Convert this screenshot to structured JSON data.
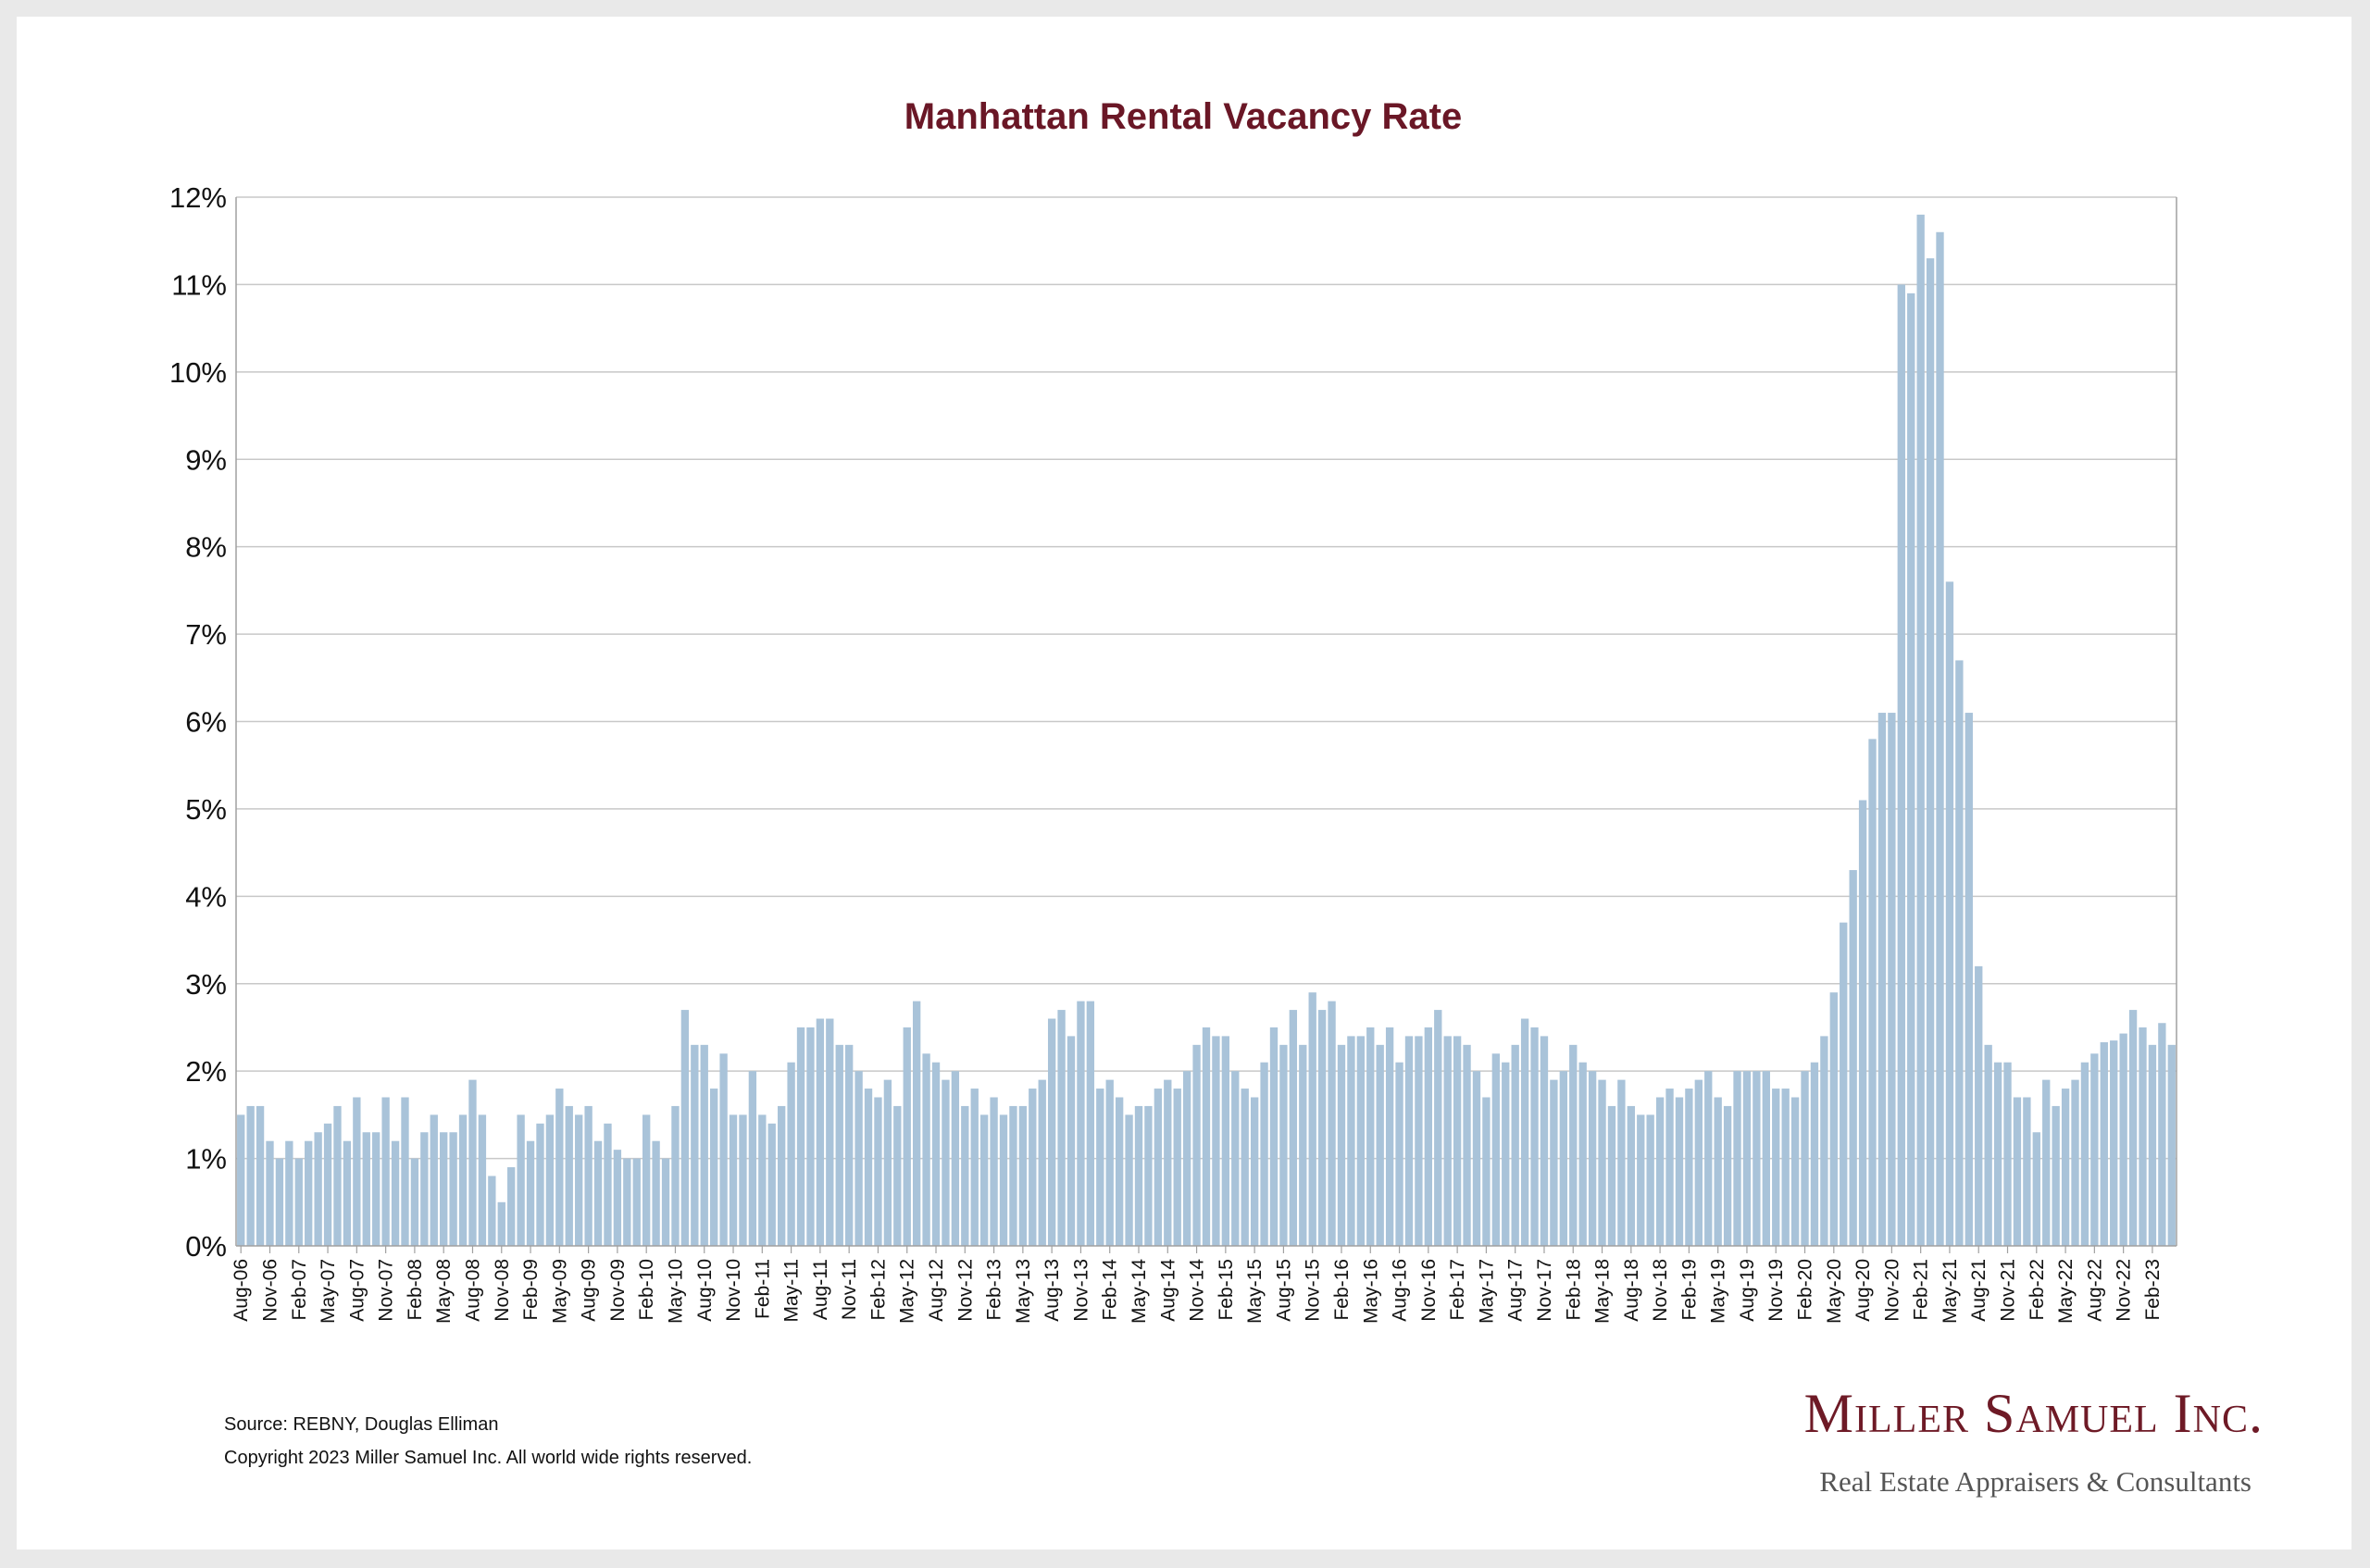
{
  "chart_data": {
    "type": "bar",
    "title": "Manhattan Rental Vacancy Rate",
    "xlabel": "",
    "ylabel": "",
    "ylim": [
      0,
      12
    ],
    "y_tick_labels": [
      "0%",
      "1%",
      "2%",
      "3%",
      "4%",
      "5%",
      "6%",
      "7%",
      "8%",
      "9%",
      "10%",
      "11%",
      "12%"
    ],
    "grid": true,
    "legend": "none",
    "colors": {
      "bar": "#a9c3d9",
      "title": "#6a1726",
      "grid": "#c8c8c8",
      "axis": "#a0a0a0"
    },
    "categories": [
      "Aug-06",
      "Sep-06",
      "Oct-06",
      "Nov-06",
      "Dec-06",
      "Jan-07",
      "Feb-07",
      "Mar-07",
      "Apr-07",
      "May-07",
      "Jun-07",
      "Jul-07",
      "Aug-07",
      "Sep-07",
      "Oct-07",
      "Nov-07",
      "Dec-07",
      "Jan-08",
      "Feb-08",
      "Mar-08",
      "Apr-08",
      "May-08",
      "Jun-08",
      "Jul-08",
      "Aug-08",
      "Sep-08",
      "Oct-08",
      "Nov-08",
      "Dec-08",
      "Jan-09",
      "Feb-09",
      "Mar-09",
      "Apr-09",
      "May-09",
      "Jun-09",
      "Jul-09",
      "Aug-09",
      "Sep-09",
      "Oct-09",
      "Nov-09",
      "Dec-09",
      "Jan-10",
      "Feb-10",
      "Mar-10",
      "Apr-10",
      "May-10",
      "Jun-10",
      "Jul-10",
      "Aug-10",
      "Sep-10",
      "Oct-10",
      "Nov-10",
      "Dec-10",
      "Jan-11",
      "Feb-11",
      "Mar-11",
      "Apr-11",
      "May-11",
      "Jun-11",
      "Jul-11",
      "Aug-11",
      "Sep-11",
      "Oct-11",
      "Nov-11",
      "Dec-11",
      "Jan-12",
      "Feb-12",
      "Mar-12",
      "Apr-12",
      "May-12",
      "Jun-12",
      "Jul-12",
      "Aug-12",
      "Sep-12",
      "Oct-12",
      "Nov-12",
      "Dec-12",
      "Jan-13",
      "Feb-13",
      "Mar-13",
      "Apr-13",
      "May-13",
      "Jun-13",
      "Jul-13",
      "Aug-13",
      "Sep-13",
      "Oct-13",
      "Nov-13",
      "Dec-13",
      "Jan-14",
      "Feb-14",
      "Mar-14",
      "Apr-14",
      "May-14",
      "Jun-14",
      "Jul-14",
      "Aug-14",
      "Sep-14",
      "Oct-14",
      "Nov-14",
      "Dec-14",
      "Jan-15",
      "Feb-15",
      "Mar-15",
      "Apr-15",
      "May-15",
      "Jun-15",
      "Jul-15",
      "Aug-15",
      "Sep-15",
      "Oct-15",
      "Nov-15",
      "Dec-15",
      "Jan-16",
      "Feb-16",
      "Mar-16",
      "Apr-16",
      "May-16",
      "Jun-16",
      "Jul-16",
      "Aug-16",
      "Sep-16",
      "Oct-16",
      "Nov-16",
      "Dec-16",
      "Jan-17",
      "Feb-17",
      "Mar-17",
      "Apr-17",
      "May-17",
      "Jun-17",
      "Jul-17",
      "Aug-17",
      "Sep-17",
      "Oct-17",
      "Nov-17",
      "Dec-17",
      "Jan-18",
      "Feb-18",
      "Mar-18",
      "Apr-18",
      "May-18",
      "Jun-18",
      "Jul-18",
      "Aug-18",
      "Sep-18",
      "Oct-18",
      "Nov-18",
      "Dec-18",
      "Jan-19",
      "Feb-19",
      "Mar-19",
      "Apr-19",
      "May-19",
      "Jun-19",
      "Jul-19",
      "Aug-19",
      "Sep-19",
      "Oct-19",
      "Nov-19",
      "Dec-19",
      "Jan-20",
      "Feb-20",
      "Mar-20",
      "Apr-20",
      "May-20",
      "Jun-20",
      "Jul-20",
      "Aug-20",
      "Sep-20",
      "Oct-20",
      "Nov-20",
      "Dec-20",
      "Jan-21",
      "Feb-21",
      "Mar-21",
      "Apr-21",
      "May-21",
      "Jun-21",
      "Jul-21",
      "Aug-21",
      "Sep-21",
      "Oct-21",
      "Nov-21",
      "Dec-21",
      "Jan-22",
      "Feb-22",
      "Mar-22",
      "Apr-22",
      "May-22",
      "Jun-22",
      "Jul-22",
      "Aug-22",
      "Sep-22",
      "Oct-22",
      "Nov-22",
      "Dec-22",
      "Jan-23",
      "Feb-23",
      "Mar-23",
      "Apr-23"
    ],
    "x_tick_labels": [
      "Aug-06",
      "Nov-06",
      "Feb-07",
      "May-07",
      "Aug-07",
      "Nov-07",
      "Feb-08",
      "May-08",
      "Aug-08",
      "Nov-08",
      "Feb-09",
      "May-09",
      "Aug-09",
      "Nov-09",
      "Feb-10",
      "May-10",
      "Aug-10",
      "Nov-10",
      "Feb-11",
      "May-11",
      "Aug-11",
      "Nov-11",
      "Feb-12",
      "May-12",
      "Aug-12",
      "Nov-12",
      "Feb-13",
      "May-13",
      "Aug-13",
      "Nov-13",
      "Feb-14",
      "May-14",
      "Aug-14",
      "Nov-14",
      "Feb-15",
      "May-15",
      "Aug-15",
      "Nov-15",
      "Feb-16",
      "May-16",
      "Aug-16",
      "Nov-16",
      "Feb-17",
      "May-17",
      "Aug-17",
      "Nov-17",
      "Feb-18",
      "May-18",
      "Aug-18",
      "Nov-18",
      "Feb-19",
      "May-19",
      "Aug-19",
      "Nov-19",
      "Feb-20",
      "May-20",
      "Aug-20",
      "Nov-20",
      "Feb-21",
      "May-21",
      "Aug-21",
      "Nov-21",
      "Feb-22",
      "May-22",
      "Aug-22",
      "Nov-22",
      "Feb-23"
    ],
    "values": [
      1.5,
      1.6,
      1.6,
      1.2,
      1.0,
      1.2,
      1.0,
      1.2,
      1.3,
      1.4,
      1.6,
      1.2,
      1.7,
      1.3,
      1.3,
      1.7,
      1.2,
      1.7,
      1.0,
      1.3,
      1.5,
      1.3,
      1.3,
      1.5,
      1.9,
      1.5,
      0.8,
      0.5,
      0.9,
      1.5,
      1.2,
      1.4,
      1.5,
      1.8,
      1.6,
      1.5,
      1.6,
      1.2,
      1.4,
      1.1,
      1.0,
      1.0,
      1.5,
      1.2,
      1.0,
      1.6,
      2.7,
      2.3,
      2.3,
      1.8,
      2.2,
      1.5,
      1.5,
      2.0,
      1.5,
      1.4,
      1.6,
      2.1,
      2.5,
      2.5,
      2.6,
      2.6,
      2.3,
      2.3,
      2.0,
      1.8,
      1.7,
      1.9,
      1.6,
      2.5,
      2.8,
      2.2,
      2.1,
      1.9,
      2.0,
      1.6,
      1.8,
      1.5,
      1.7,
      1.5,
      1.6,
      1.6,
      1.8,
      1.9,
      2.6,
      2.7,
      2.4,
      2.8,
      2.8,
      1.8,
      1.9,
      1.7,
      1.5,
      1.6,
      1.6,
      1.8,
      1.9,
      1.8,
      2.0,
      2.3,
      2.5,
      2.4,
      2.4,
      2.0,
      1.8,
      1.7,
      2.1,
      2.5,
      2.3,
      2.7,
      2.3,
      2.9,
      2.7,
      2.8,
      2.3,
      2.4,
      2.4,
      2.5,
      2.3,
      2.5,
      2.1,
      2.4,
      2.4,
      2.5,
      2.7,
      2.4,
      2.4,
      2.3,
      2.0,
      1.7,
      2.2,
      2.1,
      2.3,
      2.6,
      2.5,
      2.4,
      1.9,
      2.0,
      2.3,
      2.1,
      2.0,
      1.9,
      1.6,
      1.9,
      1.6,
      1.5,
      1.5,
      1.7,
      1.8,
      1.7,
      1.8,
      1.9,
      2.0,
      1.7,
      1.6,
      2.0,
      2.0,
      2.0,
      2.0,
      1.8,
      1.8,
      1.7,
      2.0,
      2.1,
      2.4,
      2.9,
      3.7,
      4.3,
      5.1,
      5.8,
      6.1,
      6.1,
      11.0,
      10.9,
      11.8,
      11.3,
      11.6,
      7.6,
      6.7,
      6.1,
      3.2,
      2.3,
      2.1,
      2.1,
      1.7,
      1.7,
      1.3,
      1.9,
      1.6,
      1.8,
      1.9,
      2.1,
      2.2,
      2.33,
      2.35,
      2.43,
      2.7,
      2.5,
      2.3,
      2.55,
      2.3
    ]
  },
  "footer": {
    "source": "Source: REBNY, Douglas Elliman",
    "copyright": "Copyright 2023 Miller Samuel Inc.  All world wide rights reserved."
  },
  "brand": {
    "name": "Miller Samuel Inc.",
    "tagline": "Real Estate Appraisers & Consultants"
  }
}
